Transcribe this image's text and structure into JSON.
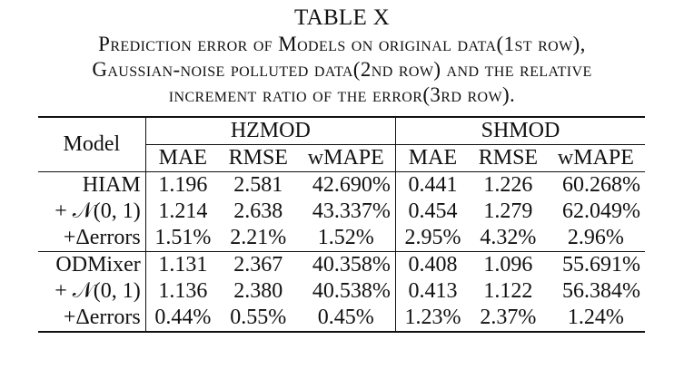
{
  "caption": {
    "label": "TABLE X",
    "lines": [
      "Prediction error of Models on original data(1st row),",
      "Gaussian-noise polluted data(2nd row) and the relative",
      "increment ratio of the error(3rd row)."
    ]
  },
  "table": {
    "model_header": "Model",
    "groups": [
      "HZMOD",
      "SHMOD"
    ],
    "metrics": [
      "MAE",
      "RMSE",
      "wMAPE",
      "MAE",
      "RMSE",
      "wMAPE"
    ],
    "rows": [
      {
        "model": "HIAM",
        "cells": [
          "1.196",
          "2.581",
          "42.690%",
          "0.441",
          "1.226",
          "60.268%"
        ]
      },
      {
        "model": "+ 𝒩(0, 1)",
        "cells": [
          "1.214",
          "2.638",
          "43.337%",
          "0.454",
          "1.279",
          "62.049%"
        ]
      },
      {
        "model": "+Δerrors",
        "cells": [
          "1.51%",
          "2.21%",
          "1.52%",
          "2.95%",
          "4.32%",
          "2.96%"
        ]
      },
      {
        "model": "ODMixer",
        "cells": [
          "1.131",
          "2.367",
          "40.358%",
          "0.408",
          "1.096",
          "55.691%"
        ]
      },
      {
        "model": "+ 𝒩(0, 1)",
        "cells": [
          "1.136",
          "2.380",
          "40.538%",
          "0.413",
          "1.122",
          "56.384%"
        ]
      },
      {
        "model": "+Δerrors",
        "cells": [
          "0.44%",
          "0.55%",
          "0.45%",
          "1.23%",
          "2.37%",
          "1.24%"
        ]
      }
    ]
  }
}
